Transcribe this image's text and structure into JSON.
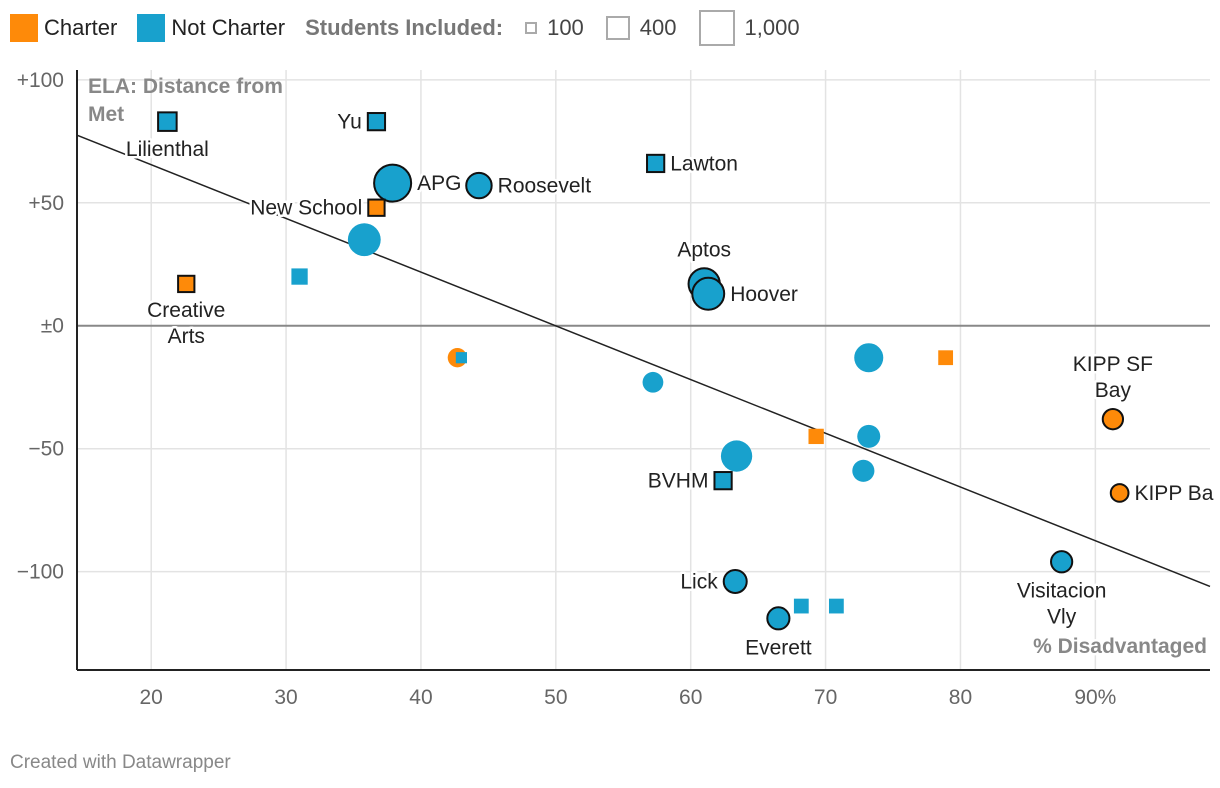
{
  "legend": {
    "charter_label": "Charter",
    "not_charter_label": "Not Charter",
    "size_title": "Students Included:",
    "sizes": [
      {
        "label": "100",
        "students": 100
      },
      {
        "label": "400",
        "students": 400
      },
      {
        "label": "1,000",
        "students": 1000
      }
    ]
  },
  "colors": {
    "charter": "#fe8a09",
    "not_charter": "#18a1cd",
    "grid": "#e3e3e3",
    "zero": "#888888"
  },
  "footer": "Created with Datawrapper",
  "chart_data": {
    "type": "scatter",
    "title": "",
    "ylabel_lines": [
      "ELA: Distance from",
      "Met"
    ],
    "xlabel": "% Disadvantaged",
    "xlim": [
      14.5,
      98.5
    ],
    "ylim": [
      -140,
      104
    ],
    "x_ticks": [
      20,
      30,
      40,
      50,
      60,
      70,
      80,
      90
    ],
    "x_tick_labels": [
      "20",
      "30",
      "40",
      "50",
      "60",
      "70",
      "80",
      "90%"
    ],
    "y_ticks": [
      100,
      50,
      0,
      -50,
      -100
    ],
    "y_tick_labels": [
      "+100",
      "+50",
      "±0",
      "−50",
      "−100"
    ],
    "trend_line": {
      "x": [
        14.5,
        98.5
      ],
      "y": [
        77.5,
        -106
      ]
    },
    "points": [
      {
        "x": 21.2,
        "y": 83,
        "type": "not_charter",
        "shape": "square",
        "students": 220,
        "outlined": true,
        "label": "Lilienthal",
        "anchor": "below"
      },
      {
        "x": 36.7,
        "y": 83,
        "type": "not_charter",
        "shape": "square",
        "students": 190,
        "outlined": true,
        "label": "Yu",
        "anchor": "left"
      },
      {
        "x": 37.9,
        "y": 58,
        "type": "not_charter",
        "shape": "circle",
        "students": 700,
        "outlined": true,
        "label": "APG",
        "anchor": "right"
      },
      {
        "x": 44.3,
        "y": 57,
        "type": "not_charter",
        "shape": "circle",
        "students": 330,
        "outlined": true,
        "label": "Roosevelt",
        "anchor": "right"
      },
      {
        "x": 57.4,
        "y": 66,
        "type": "not_charter",
        "shape": "square",
        "students": 190,
        "outlined": true,
        "label": "Lawton",
        "anchor": "right"
      },
      {
        "x": 36.7,
        "y": 48,
        "type": "charter",
        "shape": "square",
        "students": 170,
        "outlined": true,
        "label": "New School",
        "anchor": "left"
      },
      {
        "x": 35.8,
        "y": 35,
        "type": "not_charter",
        "shape": "circle",
        "students": 550,
        "outlined": false,
        "label": "",
        "anchor": ""
      },
      {
        "x": 22.6,
        "y": 17,
        "type": "charter",
        "shape": "square",
        "students": 170,
        "outlined": true,
        "label": "Creative Arts",
        "anchor": "below"
      },
      {
        "x": 31.0,
        "y": 20,
        "type": "not_charter",
        "shape": "square",
        "students": 170,
        "outlined": false,
        "label": "",
        "anchor": ""
      },
      {
        "x": 61.0,
        "y": 17,
        "type": "not_charter",
        "shape": "circle",
        "students": 500,
        "outlined": true,
        "label": "Aptos",
        "anchor": "above"
      },
      {
        "x": 61.3,
        "y": 13,
        "type": "not_charter",
        "shape": "circle",
        "students": 520,
        "outlined": true,
        "label": "Hoover",
        "anchor": "right"
      },
      {
        "x": 42.7,
        "y": -13,
        "type": "charter",
        "shape": "circle",
        "students": 190,
        "outlined": false,
        "label": "",
        "anchor": ""
      },
      {
        "x": 43.0,
        "y": -13,
        "type": "not_charter",
        "shape": "square",
        "students": 80,
        "outlined": false,
        "label": "",
        "anchor": ""
      },
      {
        "x": 57.2,
        "y": -23,
        "type": "not_charter",
        "shape": "circle",
        "students": 220,
        "outlined": false,
        "label": "",
        "anchor": ""
      },
      {
        "x": 73.2,
        "y": -13,
        "type": "not_charter",
        "shape": "circle",
        "students": 430,
        "outlined": false,
        "label": "",
        "anchor": ""
      },
      {
        "x": 78.9,
        "y": -13,
        "type": "charter",
        "shape": "square",
        "students": 140,
        "outlined": false,
        "label": "",
        "anchor": ""
      },
      {
        "x": 91.3,
        "y": -38,
        "type": "charter",
        "shape": "circle",
        "students": 210,
        "outlined": true,
        "label": "KIPP SF Bay",
        "anchor": "above"
      },
      {
        "x": 69.3,
        "y": -45,
        "type": "charter",
        "shape": "square",
        "students": 150,
        "outlined": false,
        "label": "",
        "anchor": ""
      },
      {
        "x": 73.2,
        "y": -45,
        "type": "not_charter",
        "shape": "circle",
        "students": 270,
        "outlined": false,
        "label": "",
        "anchor": ""
      },
      {
        "x": 63.4,
        "y": -53,
        "type": "not_charter",
        "shape": "circle",
        "students": 500,
        "outlined": false,
        "label": "",
        "anchor": ""
      },
      {
        "x": 72.8,
        "y": -59,
        "type": "not_charter",
        "shape": "circle",
        "students": 250,
        "outlined": false,
        "label": "",
        "anchor": ""
      },
      {
        "x": 62.4,
        "y": -63,
        "type": "not_charter",
        "shape": "square",
        "students": 190,
        "outlined": true,
        "label": "BVHM",
        "anchor": "left"
      },
      {
        "x": 91.8,
        "y": -68,
        "type": "charter",
        "shape": "circle",
        "students": 160,
        "outlined": true,
        "label": "KIPP Ba",
        "anchor": "right"
      },
      {
        "x": 87.5,
        "y": -96,
        "type": "not_charter",
        "shape": "circle",
        "students": 230,
        "outlined": true,
        "label": "Visitacion Vly",
        "anchor": "below"
      },
      {
        "x": 63.3,
        "y": -104,
        "type": "not_charter",
        "shape": "circle",
        "students": 270,
        "outlined": true,
        "label": "Lick",
        "anchor": "left"
      },
      {
        "x": 68.2,
        "y": -114,
        "type": "not_charter",
        "shape": "square",
        "students": 140,
        "outlined": false,
        "label": "",
        "anchor": ""
      },
      {
        "x": 70.8,
        "y": -114,
        "type": "not_charter",
        "shape": "square",
        "students": 140,
        "outlined": false,
        "label": "",
        "anchor": ""
      },
      {
        "x": 66.5,
        "y": -119,
        "type": "not_charter",
        "shape": "circle",
        "students": 250,
        "outlined": true,
        "label": "Everett",
        "anchor": "below"
      }
    ]
  }
}
